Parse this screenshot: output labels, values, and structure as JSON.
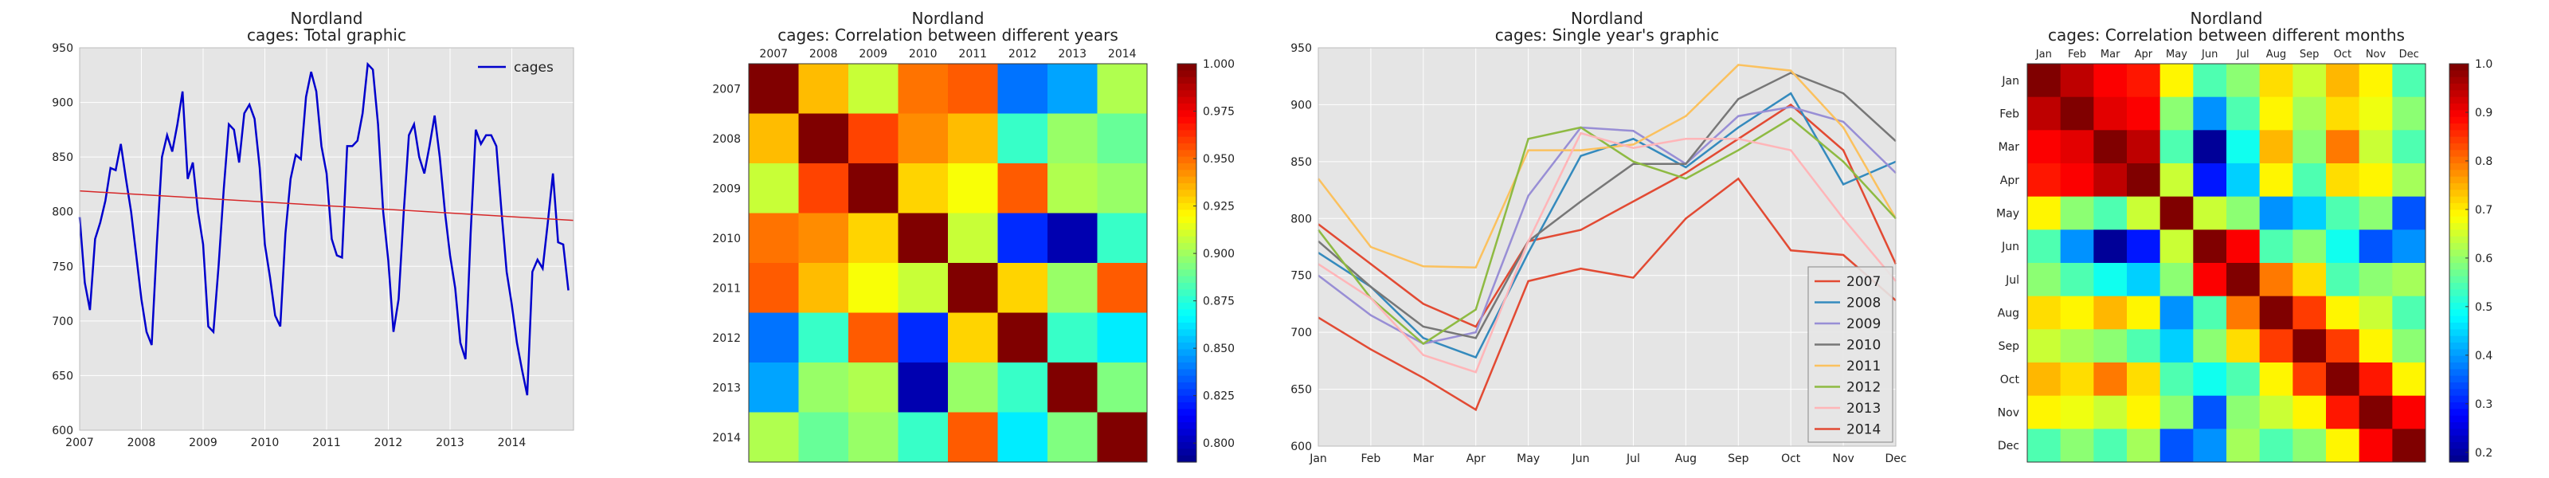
{
  "chart_data": [
    {
      "type": "line",
      "title": "Nordland\ncages: Total graphic",
      "xlabel": "",
      "ylabel": "",
      "xlim": [
        "2007-01",
        "2015-01"
      ],
      "ylim": [
        600,
        950
      ],
      "x_ticks": [
        "2007",
        "2008",
        "2009",
        "2010",
        "2011",
        "2012",
        "2013",
        "2014"
      ],
      "y_ticks": [
        600,
        650,
        700,
        750,
        800,
        850,
        900,
        950
      ],
      "grid": true,
      "legend": {
        "position": "top-right",
        "entries": [
          "cages"
        ]
      },
      "colors": {
        "series": "#0000cc",
        "trend": "#d62728",
        "plot_bg": "#e5e5e5"
      },
      "series": [
        {
          "name": "cages",
          "start": "2007-01",
          "step": "month",
          "values": [
            795,
            735,
            710,
            775,
            790,
            810,
            840,
            838,
            862,
            830,
            800,
            760,
            720,
            690,
            678,
            770,
            850,
            870,
            855,
            880,
            910,
            830,
            845,
            800,
            770,
            695,
            690,
            750,
            820,
            880,
            875,
            845,
            890,
            898,
            885,
            840,
            770,
            740,
            705,
            695,
            780,
            830,
            852,
            848,
            905,
            928,
            910,
            860,
            835,
            775,
            760,
            758,
            860,
            860,
            865,
            890,
            935,
            930,
            880,
            800,
            755,
            690,
            720,
            800,
            870,
            880,
            850,
            835,
            860,
            888,
            850,
            800,
            760,
            730,
            680,
            665,
            780,
            875,
            862,
            870,
            870,
            860,
            800,
            745,
            715,
            680,
            655,
            632,
            745,
            756,
            748,
            790,
            835,
            772,
            770,
            728
          ]
        },
        {
          "name": "trend",
          "x": [
            "2007-01",
            "2015-01"
          ],
          "values": [
            819,
            792
          ]
        }
      ]
    },
    {
      "type": "heatmap",
      "title": "Nordland\ncages: Correlation between different years",
      "labels": [
        "2007",
        "2008",
        "2009",
        "2010",
        "2011",
        "2012",
        "2013",
        "2014"
      ],
      "matrix": [
        [
          1.0,
          0.935,
          0.91,
          0.95,
          0.955,
          0.84,
          0.85,
          0.905
        ],
        [
          0.935,
          1.0,
          0.96,
          0.945,
          0.935,
          0.88,
          0.9,
          0.89
        ],
        [
          0.91,
          0.96,
          1.0,
          0.93,
          0.92,
          0.955,
          0.905,
          0.9
        ],
        [
          0.95,
          0.945,
          0.93,
          1.0,
          0.91,
          0.825,
          0.8,
          0.88
        ],
        [
          0.955,
          0.935,
          0.92,
          0.91,
          1.0,
          0.93,
          0.9,
          0.955
        ],
        [
          0.84,
          0.88,
          0.955,
          0.825,
          0.93,
          1.0,
          0.88,
          0.865
        ],
        [
          0.85,
          0.9,
          0.905,
          0.8,
          0.9,
          0.88,
          1.0,
          0.895
        ],
        [
          0.905,
          0.89,
          0.9,
          0.88,
          0.955,
          0.865,
          0.895,
          1.0
        ]
      ],
      "colorbar": {
        "range": [
          0.79,
          1.0
        ],
        "ticks": [
          "1.000",
          "0.975",
          "0.950",
          "0.925",
          "0.900",
          "0.875",
          "0.850",
          "0.825",
          "0.800"
        ]
      },
      "colormap": "jet"
    },
    {
      "type": "line",
      "title": "Nordland\ncages: Single year's graphic",
      "xlabel": "",
      "ylabel": "",
      "categories": [
        "Jan",
        "Feb",
        "Mar",
        "Apr",
        "May",
        "Jun",
        "Jul",
        "Aug",
        "Sep",
        "Oct",
        "Nov",
        "Dec"
      ],
      "ylim": [
        600,
        950
      ],
      "y_ticks": [
        600,
        650,
        700,
        750,
        800,
        850,
        900,
        950
      ],
      "grid": true,
      "legend": {
        "position": "bottom-right",
        "entries": [
          "2007",
          "2008",
          "2009",
          "2010",
          "2011",
          "2012",
          "2013",
          "2014"
        ]
      },
      "series": [
        {
          "name": "2007",
          "color": "#e24a33",
          "values": [
            795,
            760,
            725,
            705,
            780,
            790,
            815,
            840,
            870,
            900,
            860,
            760
          ]
        },
        {
          "name": "2008",
          "color": "#348abd",
          "values": [
            770,
            740,
            695,
            678,
            770,
            855,
            870,
            845,
            880,
            910,
            830,
            850
          ]
        },
        {
          "name": "2009",
          "color": "#988ed5",
          "values": [
            750,
            715,
            690,
            700,
            820,
            880,
            877,
            848,
            890,
            898,
            885,
            840
          ]
        },
        {
          "name": "2010",
          "color": "#777777",
          "values": [
            780,
            740,
            705,
            695,
            780,
            815,
            848,
            848,
            905,
            928,
            910,
            868
          ]
        },
        {
          "name": "2011",
          "color": "#fbc15e",
          "values": [
            835,
            775,
            758,
            757,
            860,
            860,
            865,
            890,
            935,
            930,
            880,
            800
          ]
        },
        {
          "name": "2012",
          "color": "#8eba42",
          "values": [
            790,
            730,
            690,
            720,
            870,
            880,
            850,
            835,
            860,
            888,
            850,
            800
          ]
        },
        {
          "name": "2013",
          "color": "#ffb5b8",
          "values": [
            760,
            730,
            680,
            665,
            780,
            875,
            862,
            870,
            870,
            860,
            800,
            745
          ]
        },
        {
          "name": "2014",
          "color": "#e24a33",
          "values": [
            713,
            685,
            660,
            632,
            745,
            756,
            748,
            800,
            835,
            772,
            768,
            728
          ]
        }
      ]
    },
    {
      "type": "heatmap",
      "title": "Nordland\ncages: Correlation between different months",
      "labels": [
        "Jan",
        "Feb",
        "Mar",
        "Apr",
        "May",
        "Jun",
        "Jul",
        "Aug",
        "Sep",
        "Oct",
        "Nov",
        "Dec"
      ],
      "matrix": [
        [
          1.0,
          0.95,
          0.9,
          0.88,
          0.7,
          0.55,
          0.6,
          0.72,
          0.65,
          0.75,
          0.7,
          0.55
        ],
        [
          0.95,
          1.0,
          0.92,
          0.9,
          0.6,
          0.4,
          0.55,
          0.7,
          0.62,
          0.72,
          0.68,
          0.6
        ],
        [
          0.9,
          0.92,
          1.0,
          0.95,
          0.55,
          0.2,
          0.5,
          0.75,
          0.6,
          0.8,
          0.65,
          0.55
        ],
        [
          0.88,
          0.9,
          0.95,
          1.0,
          0.65,
          0.3,
          0.45,
          0.7,
          0.55,
          0.72,
          0.7,
          0.62
        ],
        [
          0.7,
          0.6,
          0.55,
          0.65,
          1.0,
          0.65,
          0.6,
          0.4,
          0.45,
          0.55,
          0.6,
          0.35
        ],
        [
          0.55,
          0.4,
          0.2,
          0.3,
          0.65,
          1.0,
          0.9,
          0.55,
          0.6,
          0.5,
          0.35,
          0.4
        ],
        [
          0.6,
          0.55,
          0.5,
          0.45,
          0.6,
          0.9,
          1.0,
          0.8,
          0.72,
          0.55,
          0.6,
          0.62
        ],
        [
          0.72,
          0.7,
          0.75,
          0.7,
          0.4,
          0.55,
          0.8,
          1.0,
          0.85,
          0.7,
          0.65,
          0.55
        ],
        [
          0.65,
          0.62,
          0.6,
          0.55,
          0.45,
          0.6,
          0.72,
          0.85,
          1.0,
          0.85,
          0.7,
          0.6
        ],
        [
          0.75,
          0.72,
          0.8,
          0.72,
          0.55,
          0.5,
          0.55,
          0.7,
          0.85,
          1.0,
          0.88,
          0.7
        ],
        [
          0.7,
          0.68,
          0.65,
          0.7,
          0.6,
          0.35,
          0.6,
          0.65,
          0.7,
          0.88,
          1.0,
          0.9
        ],
        [
          0.55,
          0.6,
          0.55,
          0.62,
          0.35,
          0.4,
          0.62,
          0.55,
          0.6,
          0.7,
          0.9,
          1.0
        ]
      ],
      "colorbar": {
        "range": [
          0.18,
          1.0
        ],
        "ticks": [
          "1.0",
          "0.9",
          "0.8",
          "0.7",
          "0.6",
          "0.5",
          "0.4",
          "0.3",
          "0.2"
        ]
      },
      "colormap": "jet"
    }
  ]
}
